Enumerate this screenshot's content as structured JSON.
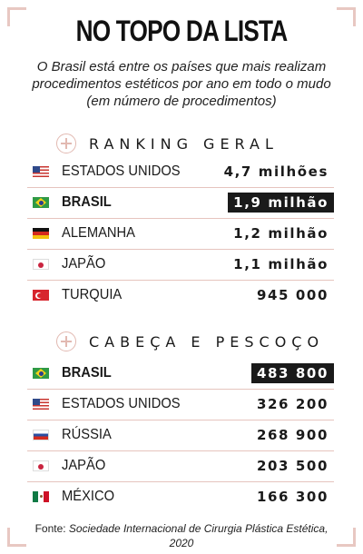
{
  "title": "NO TOPO DA LISTA",
  "subtitle": "O Brasil está entre os países que mais realizam procedimentos estéticos por ano em todo o mudo (em número de procedimentos)",
  "sections": [
    {
      "label": "RANKING GERAL",
      "rows": [
        {
          "country": "ESTADOS UNIDOS",
          "value": "4,7 milhões",
          "flag": "us-flag-icon",
          "highlight": false
        },
        {
          "country": "BRASIL",
          "value": "1,9 milhão",
          "flag": "brazil-flag-icon",
          "highlight": true
        },
        {
          "country": "ALEMANHA",
          "value": "1,2 milhão",
          "flag": "germany-flag-icon",
          "highlight": false
        },
        {
          "country": "JAPÃO",
          "value": "1,1 milhão",
          "flag": "japan-flag-icon",
          "highlight": false
        },
        {
          "country": "TURQUIA",
          "value": "945 000",
          "flag": "turkey-flag-icon",
          "highlight": false
        }
      ]
    },
    {
      "label": "CABEÇA E PESCOÇO",
      "rows": [
        {
          "country": "BRASIL",
          "value": "483 800",
          "flag": "brazil-flag-icon",
          "highlight": true
        },
        {
          "country": "ESTADOS UNIDOS",
          "value": "326 200",
          "flag": "us-flag-icon",
          "highlight": false
        },
        {
          "country": "RÚSSIA",
          "value": "268 900",
          "flag": "russia-flag-icon",
          "highlight": false
        },
        {
          "country": "JAPÃO",
          "value": "203 500",
          "flag": "japan-flag-icon",
          "highlight": false
        },
        {
          "country": "MÉXICO",
          "value": "166 300",
          "flag": "mexico-flag-icon",
          "highlight": false
        }
      ]
    }
  ],
  "footer": {
    "prefix": "Fonte: ",
    "source": "Sociedade Internacional de Cirurgia Plástica Estética, 2020"
  },
  "colors": {
    "accent": "#e2b9b1",
    "highlight_bg": "#1a1a1a",
    "highlight_text": "#ffffff"
  }
}
